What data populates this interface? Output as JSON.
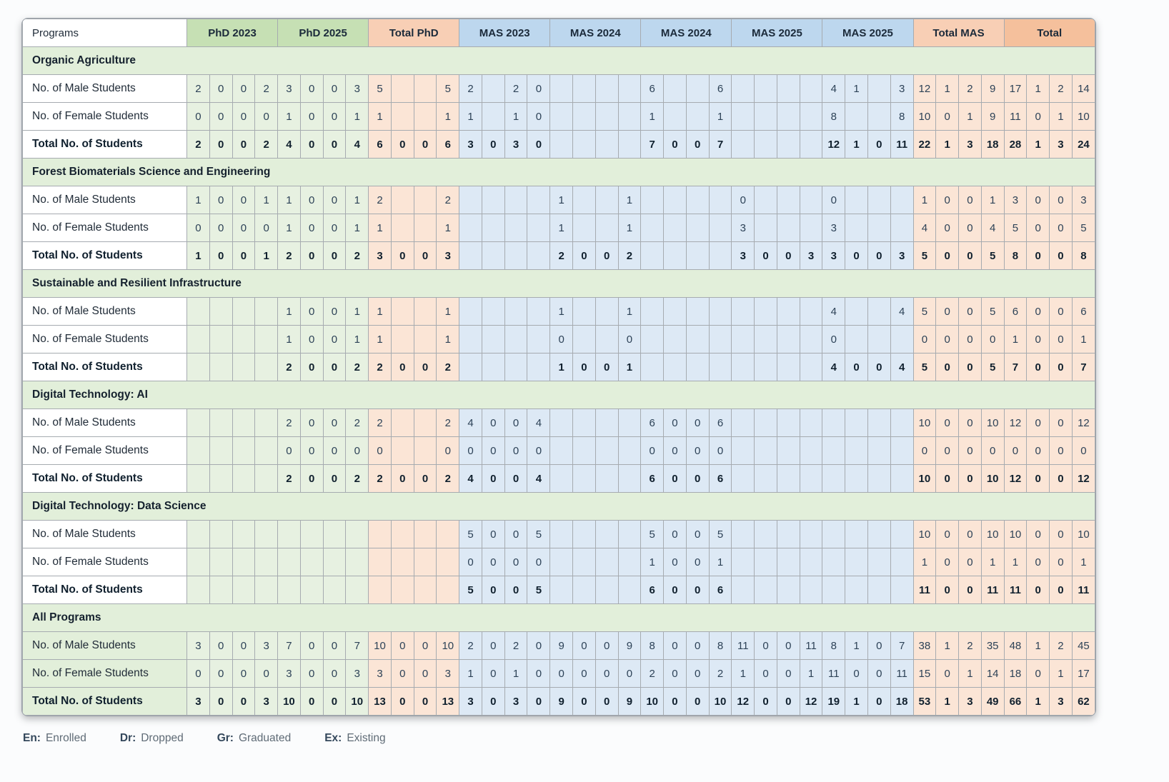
{
  "table": {
    "programs_header": "Programs",
    "column_groups": [
      {
        "label": "PhD 2023",
        "style": "green"
      },
      {
        "label": "PhD 2025",
        "style": "green"
      },
      {
        "label": "Total PhD",
        "style": "peach"
      },
      {
        "label": "MAS 2023",
        "style": "blue"
      },
      {
        "label": "MAS 2024",
        "style": "blue"
      },
      {
        "label": "MAS 2024",
        "style": "blue"
      },
      {
        "label": "MAS 2025",
        "style": "blue"
      },
      {
        "label": "MAS 2025",
        "style": "blue"
      },
      {
        "label": "Total MAS",
        "style": "peach"
      },
      {
        "label": "Total",
        "style": "orange"
      }
    ],
    "sub_columns_per_group": 4,
    "sub_column_keys": [
      "En",
      "Dr",
      "Gr",
      "Ex"
    ],
    "sections": [
      {
        "title": "Organic Agriculture",
        "highlight_labels": false,
        "rows": [
          {
            "label": "No. of Male Students",
            "bold": false,
            "values": [
              "2",
              "0",
              "0",
              "2",
              "3",
              "0",
              "0",
              "3",
              "5",
              "",
              "",
              "5",
              "2",
              "",
              "2",
              "0",
              "",
              "",
              "",
              "",
              "6",
              "",
              "",
              "6",
              "",
              "",
              "",
              "",
              "4",
              "1",
              "",
              "3",
              "12",
              "1",
              "2",
              "9",
              "17",
              "1",
              "2",
              "14"
            ]
          },
          {
            "label": "No. of Female Students",
            "bold": false,
            "values": [
              "0",
              "0",
              "0",
              "0",
              "1",
              "0",
              "0",
              "1",
              "1",
              "",
              "",
              "1",
              "1",
              "",
              "1",
              "0",
              "",
              "",
              "",
              "",
              "1",
              "",
              "",
              "1",
              "",
              "",
              "",
              "",
              "8",
              "",
              "",
              "8",
              "10",
              "0",
              "1",
              "9",
              "11",
              "0",
              "1",
              "10"
            ]
          },
          {
            "label": "Total No. of Students",
            "bold": true,
            "values": [
              "2",
              "0",
              "0",
              "2",
              "4",
              "0",
              "0",
              "4",
              "6",
              "0",
              "0",
              "6",
              "3",
              "0",
              "3",
              "0",
              "",
              "",
              "",
              "",
              "7",
              "0",
              "0",
              "7",
              "",
              "",
              "",
              "",
              "12",
              "1",
              "0",
              "11",
              "22",
              "1",
              "3",
              "18",
              "28",
              "1",
              "3",
              "24"
            ]
          }
        ]
      },
      {
        "title": "Forest Biomaterials Science and Engineering",
        "highlight_labels": false,
        "rows": [
          {
            "label": "No. of Male Students",
            "bold": false,
            "values": [
              "1",
              "0",
              "0",
              "1",
              "1",
              "0",
              "0",
              "1",
              "2",
              "",
              "",
              "2",
              "",
              "",
              "",
              "",
              "1",
              "",
              "",
              "1",
              "",
              "",
              "",
              "",
              "0",
              "",
              "",
              "",
              "0",
              "",
              "",
              "",
              "1",
              "0",
              "0",
              "1",
              "3",
              "0",
              "0",
              "3"
            ]
          },
          {
            "label": "No. of Female Students",
            "bold": false,
            "values": [
              "0",
              "0",
              "0",
              "0",
              "1",
              "0",
              "0",
              "1",
              "1",
              "",
              "",
              "1",
              "",
              "",
              "",
              "",
              "1",
              "",
              "",
              "1",
              "",
              "",
              "",
              "",
              "3",
              "",
              "",
              "",
              "3",
              "",
              "",
              "",
              "4",
              "0",
              "0",
              "4",
              "5",
              "0",
              "0",
              "5"
            ]
          },
          {
            "label": "Total No. of Students",
            "bold": true,
            "values": [
              "1",
              "0",
              "0",
              "1",
              "2",
              "0",
              "0",
              "2",
              "3",
              "0",
              "0",
              "3",
              "",
              "",
              "",
              "",
              "2",
              "0",
              "0",
              "2",
              "",
              "",
              "",
              "",
              "3",
              "0",
              "0",
              "3",
              "3",
              "0",
              "0",
              "3",
              "5",
              "0",
              "0",
              "5",
              "8",
              "0",
              "0",
              "8"
            ]
          }
        ]
      },
      {
        "title": "Sustainable and Resilient Infrastructure",
        "highlight_labels": false,
        "rows": [
          {
            "label": "No. of Male Students",
            "bold": false,
            "values": [
              "",
              "",
              "",
              "",
              "1",
              "0",
              "0",
              "1",
              "1",
              "",
              "",
              "1",
              "",
              "",
              "",
              "",
              "1",
              "",
              "",
              "1",
              "",
              "",
              "",
              "",
              "",
              "",
              "",
              "",
              "4",
              "",
              "",
              "4",
              "5",
              "0",
              "0",
              "5",
              "6",
              "0",
              "0",
              "6"
            ]
          },
          {
            "label": "No. of Female Students",
            "bold": false,
            "values": [
              "",
              "",
              "",
              "",
              "1",
              "0",
              "0",
              "1",
              "1",
              "",
              "",
              "1",
              "",
              "",
              "",
              "",
              "0",
              "",
              "",
              "0",
              "",
              "",
              "",
              "",
              "",
              "",
              "",
              "",
              "0",
              "",
              "",
              "",
              "0",
              "0",
              "0",
              "0",
              "1",
              "0",
              "0",
              "1"
            ]
          },
          {
            "label": "Total No. of Students",
            "bold": true,
            "values": [
              "",
              "",
              "",
              "",
              "2",
              "0",
              "0",
              "2",
              "2",
              "0",
              "0",
              "2",
              "",
              "",
              "",
              "",
              "1",
              "0",
              "0",
              "1",
              "",
              "",
              "",
              "",
              "",
              "",
              "",
              "",
              "4",
              "0",
              "0",
              "4",
              "5",
              "0",
              "0",
              "5",
              "7",
              "0",
              "0",
              "7"
            ]
          }
        ]
      },
      {
        "title": "Digital Technology: AI",
        "highlight_labels": false,
        "rows": [
          {
            "label": "No. of Male Students",
            "bold": false,
            "values": [
              "",
              "",
              "",
              "",
              "2",
              "0",
              "0",
              "2",
              "2",
              "",
              "",
              "2",
              "4",
              "0",
              "0",
              "4",
              "",
              "",
              "",
              "",
              "6",
              "0",
              "0",
              "6",
              "",
              "",
              "",
              "",
              "",
              "",
              "",
              "",
              "10",
              "0",
              "0",
              "10",
              "12",
              "0",
              "0",
              "12"
            ]
          },
          {
            "label": "No. of Female Students",
            "bold": false,
            "values": [
              "",
              "",
              "",
              "",
              "0",
              "0",
              "0",
              "0",
              "0",
              "",
              "",
              "0",
              "0",
              "0",
              "0",
              "0",
              "",
              "",
              "",
              "",
              "0",
              "0",
              "0",
              "0",
              "",
              "",
              "",
              "",
              "",
              "",
              "",
              "",
              "0",
              "0",
              "0",
              "0",
              "0",
              "0",
              "0",
              "0"
            ]
          },
          {
            "label": "Total No. of Students",
            "bold": true,
            "values": [
              "",
              "",
              "",
              "",
              "2",
              "0",
              "0",
              "2",
              "2",
              "0",
              "0",
              "2",
              "4",
              "0",
              "0",
              "4",
              "",
              "",
              "",
              "",
              "6",
              "0",
              "0",
              "6",
              "",
              "",
              "",
              "",
              "",
              "",
              "",
              "",
              "10",
              "0",
              "0",
              "10",
              "12",
              "0",
              "0",
              "12"
            ]
          }
        ]
      },
      {
        "title": "Digital Technology: Data Science",
        "highlight_labels": false,
        "rows": [
          {
            "label": "No. of Male Students",
            "bold": false,
            "values": [
              "",
              "",
              "",
              "",
              "",
              "",
              "",
              "",
              "",
              "",
              "",
              "",
              "5",
              "0",
              "0",
              "5",
              "",
              "",
              "",
              "",
              "5",
              "0",
              "0",
              "5",
              "",
              "",
              "",
              "",
              "",
              "",
              "",
              "",
              "10",
              "0",
              "0",
              "10",
              "10",
              "0",
              "0",
              "10"
            ]
          },
          {
            "label": "No. of Female Students",
            "bold": false,
            "values": [
              "",
              "",
              "",
              "",
              "",
              "",
              "",
              "",
              "",
              "",
              "",
              "",
              "0",
              "0",
              "0",
              "0",
              "",
              "",
              "",
              "",
              "1",
              "0",
              "0",
              "1",
              "",
              "",
              "",
              "",
              "",
              "",
              "",
              "",
              "1",
              "0",
              "0",
              "1",
              "1",
              "0",
              "0",
              "1"
            ]
          },
          {
            "label": "Total No. of Students",
            "bold": true,
            "values": [
              "",
              "",
              "",
              "",
              "",
              "",
              "",
              "",
              "",
              "",
              "",
              "",
              "5",
              "0",
              "0",
              "5",
              "",
              "",
              "",
              "",
              "6",
              "0",
              "0",
              "6",
              "",
              "",
              "",
              "",
              "",
              "",
              "",
              "",
              "11",
              "0",
              "0",
              "11",
              "11",
              "0",
              "0",
              "11"
            ]
          }
        ]
      },
      {
        "title": "All Programs",
        "highlight_labels": true,
        "rows": [
          {
            "label": "No. of Male Students",
            "bold": false,
            "values": [
              "3",
              "0",
              "0",
              "3",
              "7",
              "0",
              "0",
              "7",
              "10",
              "0",
              "0",
              "10",
              "2",
              "0",
              "2",
              "0",
              "9",
              "0",
              "0",
              "9",
              "8",
              "0",
              "0",
              "8",
              "11",
              "0",
              "0",
              "11",
              "8",
              "1",
              "0",
              "7",
              "38",
              "1",
              "2",
              "35",
              "48",
              "1",
              "2",
              "45"
            ]
          },
          {
            "label": "No. of Female Students",
            "bold": false,
            "values": [
              "0",
              "0",
              "0",
              "0",
              "3",
              "0",
              "0",
              "3",
              "3",
              "0",
              "0",
              "3",
              "1",
              "0",
              "1",
              "0",
              "0",
              "0",
              "0",
              "0",
              "2",
              "0",
              "0",
              "2",
              "1",
              "0",
              "0",
              "1",
              "11",
              "0",
              "0",
              "11",
              "15",
              "0",
              "1",
              "14",
              "18",
              "0",
              "1",
              "17"
            ]
          },
          {
            "label": "Total No. of Students",
            "bold": true,
            "values": [
              "3",
              "0",
              "0",
              "3",
              "10",
              "0",
              "0",
              "10",
              "13",
              "0",
              "0",
              "13",
              "3",
              "0",
              "3",
              "0",
              "9",
              "0",
              "0",
              "9",
              "10",
              "0",
              "0",
              "10",
              "12",
              "0",
              "0",
              "12",
              "19",
              "1",
              "0",
              "18",
              "53",
              "1",
              "3",
              "49",
              "66",
              "1",
              "3",
              "62"
            ]
          }
        ]
      }
    ]
  },
  "legend": {
    "items": [
      {
        "abbr": "En:",
        "label": "Enrolled"
      },
      {
        "abbr": "Dr:",
        "label": "Dropped"
      },
      {
        "abbr": "Gr:",
        "label": "Graduated"
      },
      {
        "abbr": "Ex:",
        "label": "Existing"
      }
    ]
  },
  "colors": {
    "header_green": "#c6e0b4",
    "header_blue": "#bdd7ee",
    "header_peach": "#f8cfb5",
    "header_orange": "#f5c09c",
    "cell_green": "#e7f1e1",
    "cell_blue": "#dde9f5",
    "cell_peach": "#fbe5d6",
    "section_green": "#e2efda",
    "grid_line": "#a6abb0",
    "text_dark": "#1c2b3a",
    "text_number": "#2d4257",
    "legend_abbr": "#33475b",
    "legend_text": "#5f6b76"
  }
}
